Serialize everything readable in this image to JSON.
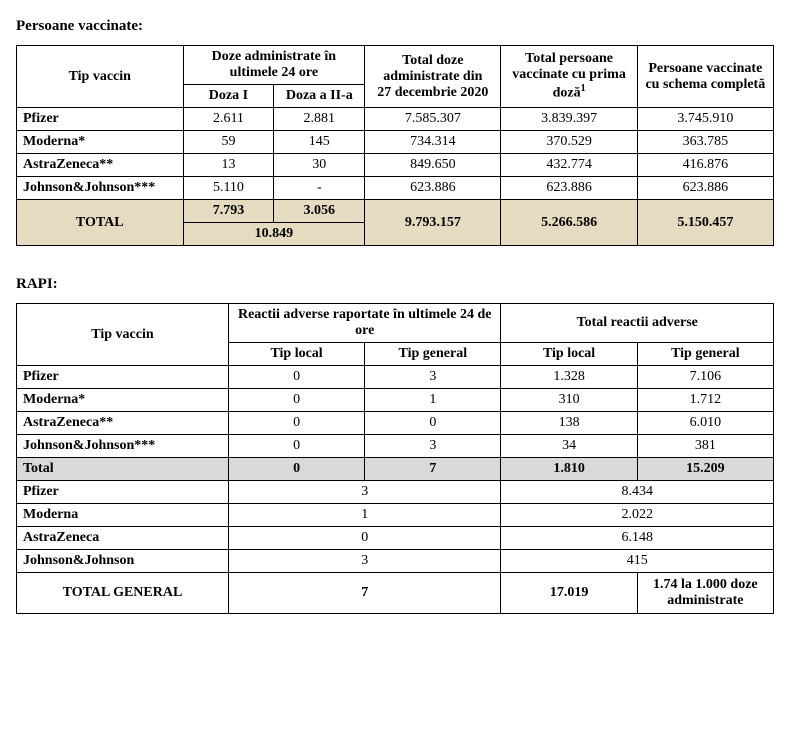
{
  "section1_title": "Persoane vaccinate:",
  "t1": {
    "headers": {
      "tip_vaccin": "Tip vaccin",
      "doze_24h": "Doze administrate în ultimele 24 ore",
      "doza1": "Doza I",
      "doza2": "Doza a II-a",
      "total_doze": "Total doze administrate din",
      "total_doze_date": "27 decembrie 2020",
      "total_prima": "Total persoane vaccinate cu prima doză",
      "total_prima_sup": "1",
      "schema_completa": "Persoane vaccinate cu schema completă"
    },
    "rows": [
      {
        "name": "Pfizer",
        "d1": "2.611",
        "d2": "2.881",
        "total": "7.585.307",
        "prima": "3.839.397",
        "completa": "3.745.910"
      },
      {
        "name": "Moderna*",
        "d1": "59",
        "d2": "145",
        "total": "734.314",
        "prima": "370.529",
        "completa": "363.785"
      },
      {
        "name": "AstraZeneca**",
        "d1": "13",
        "d2": "30",
        "total": "849.650",
        "prima": "432.774",
        "completa": "416.876"
      },
      {
        "name": "Johnson&Johnson***",
        "d1": "5.110",
        "d2": "-",
        "total": "623.886",
        "prima": "623.886",
        "completa": "623.886"
      }
    ],
    "total": {
      "label": "TOTAL",
      "d1": "7.793",
      "d2": "3.056",
      "sum24": "10.849",
      "total": "9.793.157",
      "prima": "5.266.586",
      "completa": "5.150.457"
    }
  },
  "section2_title": "RAPI:",
  "t2": {
    "headers": {
      "tip_vaccin": "Tip vaccin",
      "react_24h": "Reactii adverse raportate în ultimele 24 de ore",
      "react_total": "Total reactii adverse",
      "tip_local": "Tip local",
      "tip_general": "Tip general"
    },
    "rows": [
      {
        "name": "Pfizer",
        "loc24": "0",
        "gen24": "3",
        "locT": "1.328",
        "genT": "7.106"
      },
      {
        "name": "Moderna*",
        "loc24": "0",
        "gen24": "1",
        "locT": "310",
        "genT": "1.712"
      },
      {
        "name": "AstraZeneca**",
        "loc24": "0",
        "gen24": "0",
        "locT": "138",
        "genT": "6.010"
      },
      {
        "name": "Johnson&Johnson***",
        "loc24": "0",
        "gen24": "3",
        "locT": "34",
        "genT": "381"
      }
    ],
    "subtotal": {
      "label": "Total",
      "loc24": "0",
      "gen24": "7",
      "locT": "1.810",
      "genT": "15.209"
    },
    "merged_rows": [
      {
        "name": "Pfizer",
        "r24": "3",
        "rT": "8.434"
      },
      {
        "name": "Moderna",
        "r24": "1",
        "rT": "2.022"
      },
      {
        "name": "AstraZeneca",
        "r24": "0",
        "rT": "6.148"
      },
      {
        "name": "Johnson&Johnson",
        "r24": "3",
        "rT": "415"
      }
    ],
    "grand": {
      "label": "TOTAL GENERAL",
      "r24": "7",
      "rT": "17.019",
      "rate": "1.74 la 1.000 doze administrate"
    }
  }
}
